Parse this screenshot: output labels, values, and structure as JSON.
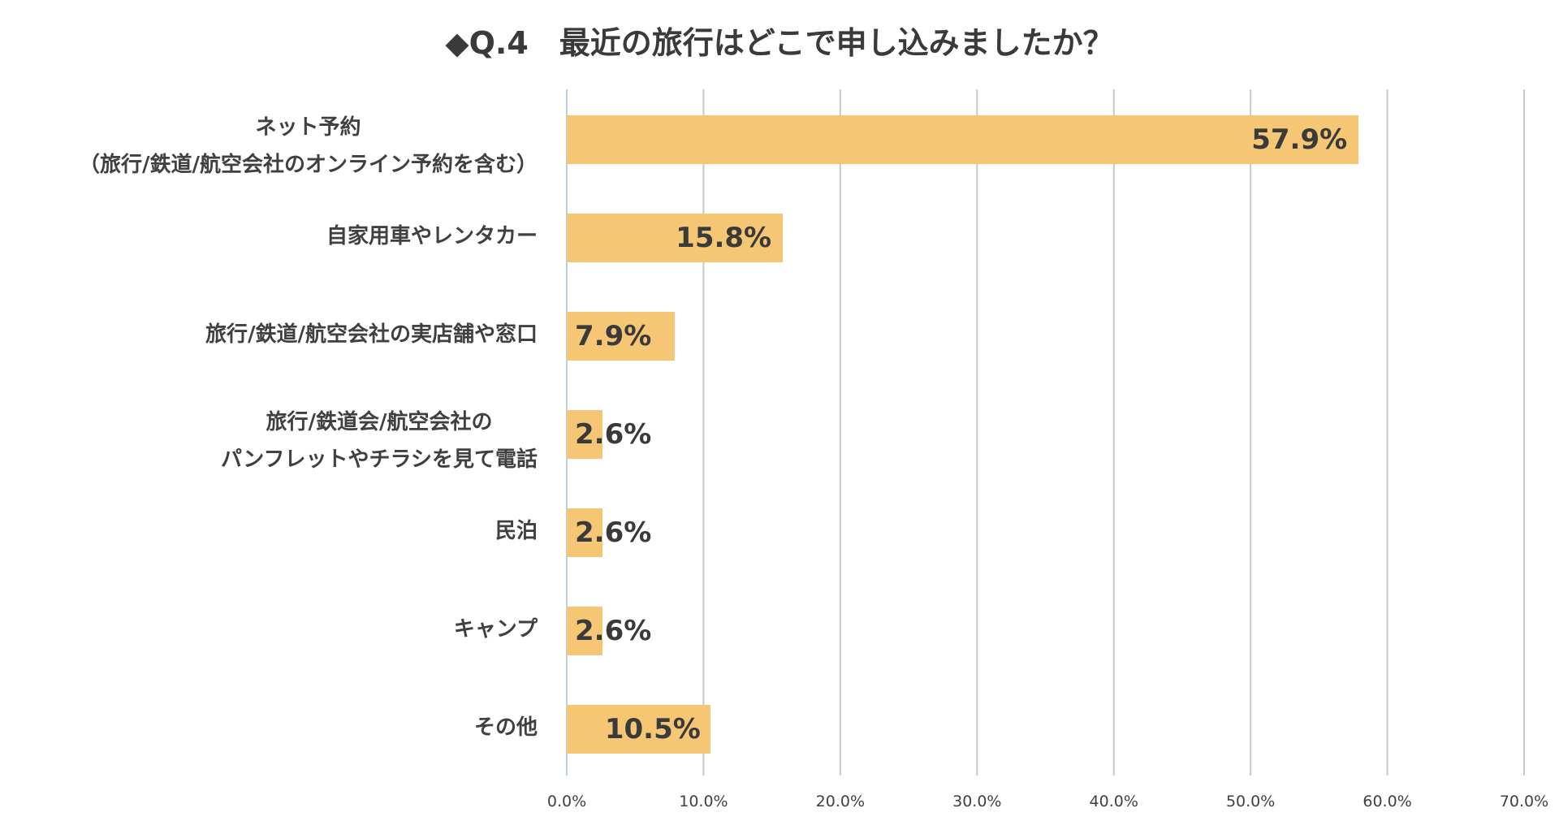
{
  "chart_data": {
    "type": "bar",
    "orientation": "horizontal",
    "title": "◆Q.4　最近の旅行はどこで申し込みましたか？",
    "categories": [
      [
        "ネット予約",
        "（旅行/鉄道/航空会社のオンライン予約を含む）"
      ],
      [
        "自家用車やレンタカー"
      ],
      [
        "旅行/鉄道/航空会社の実店舗や窓口"
      ],
      [
        "旅行/鉄道会/航空会社の",
        "パンフレットやチラシを見て電話"
      ],
      [
        "民泊"
      ],
      [
        "キャンプ"
      ],
      [
        "その他"
      ]
    ],
    "values": [
      57.9,
      15.8,
      7.9,
      2.6,
      2.6,
      2.6,
      10.5
    ],
    "value_labels": [
      "57.9%",
      "15.8%",
      "7.9%",
      "2.6%",
      "2.6%",
      "2.6%",
      "10.5%"
    ],
    "xlim": [
      0,
      70
    ],
    "xticks": [
      "0.0%",
      "10.0%",
      "20.0%",
      "30.0%",
      "40.0%",
      "50.0%",
      "60.0%",
      "70.0%"
    ],
    "grid": true,
    "bar_color": "#f5c774",
    "grid_color": "#c8c8c8",
    "legend": "none"
  }
}
